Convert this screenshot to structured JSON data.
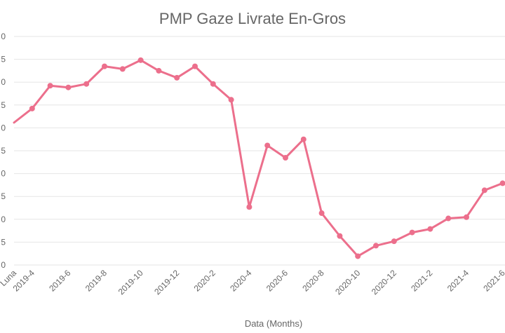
{
  "chart_data": {
    "type": "line",
    "title": "PMP Gaze Livrate En-Gros",
    "xlabel": "Data (Months)",
    "ylabel": "",
    "x": [
      "2019-3",
      "2019-4",
      "2019-5",
      "2019-6",
      "2019-7",
      "2019-8",
      "2019-9",
      "2019-10",
      "2019-11",
      "2019-12",
      "2020-1",
      "2020-2",
      "2020-3",
      "2020-4",
      "2020-5",
      "2020-6",
      "2020-7",
      "2020-8",
      "2020-9",
      "2020-10",
      "2020-11",
      "2020-12",
      "2021-1",
      "2021-2",
      "2021-3",
      "2021-4",
      "2021-5",
      "2021-6"
    ],
    "x_tick_labels": [
      "Luna",
      "2019-4",
      "2019-6",
      "2019-8",
      "2019-10",
      "2019-12",
      "2020-2",
      "2020-4",
      "2020-6",
      "2020-8",
      "2020-10",
      "2020-12",
      "2021-2",
      "2021-4",
      "2021-6"
    ],
    "series": [
      {
        "values": [
          0.61,
          0.69,
          0.82,
          0.81,
          0.83,
          0.93,
          0.915,
          0.965,
          0.905,
          0.865,
          0.93,
          0.83,
          0.74,
          0.13,
          0.48,
          0.41,
          0.515,
          0.095,
          -0.035,
          -0.15,
          -0.09,
          -0.065,
          -0.015,
          0.005,
          0.065,
          0.072,
          0.225,
          0.265
        ]
      }
    ],
    "y_tick_labels": [
      "0",
      "5",
      "0",
      "5",
      "0",
      "5",
      "0",
      "5",
      "0",
      "5",
      "0"
    ],
    "ylim": [
      -0.2,
      1.1
    ],
    "grid": true,
    "legend": "none",
    "colors": {
      "line": "#ec6f8c",
      "grid": "#e6e6e6",
      "text": "#666666"
    }
  }
}
